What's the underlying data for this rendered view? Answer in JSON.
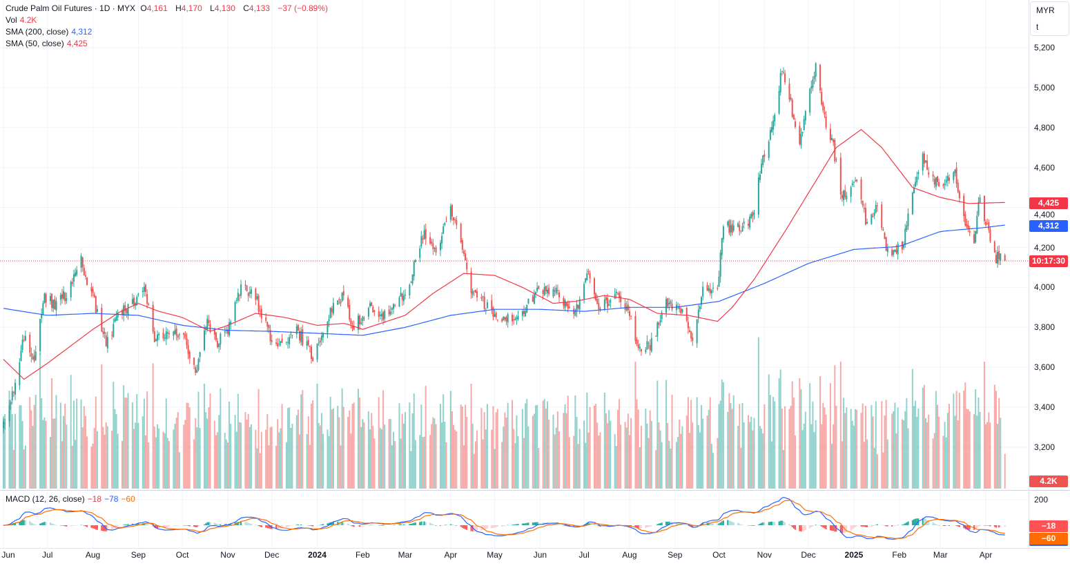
{
  "header": {
    "symbol": "Crude Palm Oil Futures · 1D · MYX",
    "open_label": "O",
    "open": "4,161",
    "high_label": "H",
    "high": "4,170",
    "low_label": "L",
    "low": "4,130",
    "close_label": "C",
    "close": "4,133",
    "change": "−37 (−0.89%)"
  },
  "indicators": {
    "vol_label": "Vol",
    "vol_value": "4.2K",
    "sma200_label": "SMA (200, close)",
    "sma200_value": "4,312",
    "sma50_label": "SMA (50, close)",
    "sma50_value": "4,425",
    "macd_label": "MACD (12, 26, close)",
    "macd_hist": "−18",
    "macd_line": "−78",
    "macd_signal": "−60"
  },
  "currency_box": {
    "currency": "MYR",
    "unit": "t"
  },
  "badges": {
    "sma50": "4,425",
    "sma200": "4,312",
    "countdown": "10:17:30",
    "volume": "4.2K",
    "macd_hist": "−18",
    "macd_signal": "−60"
  },
  "colors": {
    "up": "#26a69a",
    "down": "#ef5350",
    "sma200": "#2962ff",
    "sma50": "#f23645",
    "macd": "#2962ff",
    "signal": "#ff6d00"
  },
  "chart_data": {
    "type": "candlestick",
    "title": "Crude Palm Oil Futures · 1D · MYX",
    "ylabel": "MYR/t",
    "ylim": [
      3100,
      5250
    ],
    "y_ticks": [
      "5,200",
      "5,000",
      "4,800",
      "4,600",
      "4,400",
      "4,200",
      "4,000",
      "3,800",
      "3,600",
      "3,400",
      "3,200"
    ],
    "y_tick_values": [
      5200,
      5000,
      4800,
      4600,
      4400,
      4200,
      4000,
      3800,
      3600,
      3400,
      3200
    ],
    "x_ticks": [
      {
        "label": "Jun",
        "date": "2023-06-01"
      },
      {
        "label": "Jul",
        "date": "2023-07-01"
      },
      {
        "label": "Aug",
        "date": "2023-08-01"
      },
      {
        "label": "Sep",
        "date": "2023-09-01"
      },
      {
        "label": "Oct",
        "date": "2023-10-01"
      },
      {
        "label": "Nov",
        "date": "2023-11-01"
      },
      {
        "label": "Dec",
        "date": "2023-12-01"
      },
      {
        "label": "2024",
        "date": "2024-01-01",
        "bold": true
      },
      {
        "label": "Feb",
        "date": "2024-02-01"
      },
      {
        "label": "Mar",
        "date": "2024-03-01"
      },
      {
        "label": "Apr",
        "date": "2024-04-01"
      },
      {
        "label": "May",
        "date": "2024-05-01"
      },
      {
        "label": "Jun",
        "date": "2024-06-01"
      },
      {
        "label": "Jul",
        "date": "2024-07-01"
      },
      {
        "label": "Aug",
        "date": "2024-08-01"
      },
      {
        "label": "Sep",
        "date": "2024-09-01"
      },
      {
        "label": "Oct",
        "date": "2024-10-01"
      },
      {
        "label": "Nov",
        "date": "2024-11-01"
      },
      {
        "label": "Dec",
        "date": "2024-12-01"
      },
      {
        "label": "2025",
        "date": "2025-01-01",
        "bold": true
      },
      {
        "label": "Feb",
        "date": "2025-02-01"
      },
      {
        "label": "Mar",
        "date": "2025-03-01"
      },
      {
        "label": "Apr",
        "date": "2025-04-01"
      }
    ],
    "last": {
      "date": "2025-04-14",
      "open": 4161,
      "high": 4170,
      "low": 4130,
      "close": 4133,
      "volume_k": 4.2
    },
    "close_keypoints": [
      [
        "2023-06-01",
        3300
      ],
      [
        "2023-06-08",
        3500
      ],
      [
        "2023-06-15",
        3750
      ],
      [
        "2023-06-22",
        3650
      ],
      [
        "2023-06-29",
        3940
      ],
      [
        "2023-07-06",
        3920
      ],
      [
        "2023-07-13",
        3960
      ],
      [
        "2023-07-24",
        4130
      ],
      [
        "2023-08-01",
        3950
      ],
      [
        "2023-08-10",
        3720
      ],
      [
        "2023-08-18",
        3850
      ],
      [
        "2023-08-28",
        3930
      ],
      [
        "2023-09-05",
        4000
      ],
      [
        "2023-09-12",
        3750
      ],
      [
        "2023-09-22",
        3780
      ],
      [
        "2023-10-02",
        3750
      ],
      [
        "2023-10-10",
        3560
      ],
      [
        "2023-10-18",
        3820
      ],
      [
        "2023-10-25",
        3730
      ],
      [
        "2023-11-02",
        3800
      ],
      [
        "2023-11-10",
        4000
      ],
      [
        "2023-11-20",
        3950
      ],
      [
        "2023-11-30",
        3750
      ],
      [
        "2023-12-08",
        3720
      ],
      [
        "2023-12-18",
        3790
      ],
      [
        "2023-12-29",
        3650
      ],
      [
        "2024-01-08",
        3850
      ],
      [
        "2024-01-18",
        3960
      ],
      [
        "2024-01-26",
        3800
      ],
      [
        "2024-02-05",
        3900
      ],
      [
        "2024-02-15",
        3860
      ],
      [
        "2024-02-26",
        3930
      ],
      [
        "2024-03-05",
        4050
      ],
      [
        "2024-03-14",
        4280
      ],
      [
        "2024-03-22",
        4180
      ],
      [
        "2024-04-01",
        4400
      ],
      [
        "2024-04-08",
        4200
      ],
      [
        "2024-04-15",
        4000
      ],
      [
        "2024-04-26",
        3900
      ],
      [
        "2024-05-06",
        3850
      ],
      [
        "2024-05-17",
        3850
      ],
      [
        "2024-05-28",
        3960
      ],
      [
        "2024-06-05",
        4000
      ],
      [
        "2024-06-14",
        3960
      ],
      [
        "2024-06-25",
        3870
      ],
      [
        "2024-07-03",
        4080
      ],
      [
        "2024-07-12",
        3880
      ],
      [
        "2024-07-22",
        3980
      ],
      [
        "2024-08-01",
        3860
      ],
      [
        "2024-08-08",
        3680
      ],
      [
        "2024-08-16",
        3720
      ],
      [
        "2024-08-26",
        3930
      ],
      [
        "2024-09-05",
        3880
      ],
      [
        "2024-09-13",
        3750
      ],
      [
        "2024-09-20",
        4000
      ],
      [
        "2024-09-30",
        4000
      ],
      [
        "2024-10-04",
        4300
      ],
      [
        "2024-10-15",
        4300
      ],
      [
        "2024-10-24",
        4350
      ],
      [
        "2024-10-31",
        4650
      ],
      [
        "2024-11-08",
        4850
      ],
      [
        "2024-11-13",
        5100
      ],
      [
        "2024-11-18",
        4950
      ],
      [
        "2024-11-25",
        4700
      ],
      [
        "2024-12-02",
        5000
      ],
      [
        "2024-12-06",
        5100
      ],
      [
        "2024-12-12",
        4850
      ],
      [
        "2024-12-18",
        4700
      ],
      [
        "2024-12-24",
        4450
      ],
      [
        "2025-01-02",
        4550
      ],
      [
        "2025-01-10",
        4300
      ],
      [
        "2025-01-17",
        4400
      ],
      [
        "2025-01-24",
        4180
      ],
      [
        "2025-02-03",
        4200
      ],
      [
        "2025-02-10",
        4450
      ],
      [
        "2025-02-17",
        4650
      ],
      [
        "2025-02-24",
        4550
      ],
      [
        "2025-03-03",
        4500
      ],
      [
        "2025-03-10",
        4600
      ],
      [
        "2025-03-17",
        4350
      ],
      [
        "2025-03-24",
        4250
      ],
      [
        "2025-03-28",
        4450
      ],
      [
        "2025-04-02",
        4300
      ],
      [
        "2025-04-08",
        4150
      ],
      [
        "2025-04-14",
        4133
      ]
    ],
    "sma200_keypoints": [
      [
        "2023-06-01",
        3895
      ],
      [
        "2023-07-01",
        3860
      ],
      [
        "2023-08-01",
        3870
      ],
      [
        "2023-09-01",
        3860
      ],
      [
        "2023-10-01",
        3810
      ],
      [
        "2023-11-01",
        3785
      ],
      [
        "2023-12-01",
        3780
      ],
      [
        "2024-01-01",
        3770
      ],
      [
        "2024-02-01",
        3760
      ],
      [
        "2024-03-01",
        3800
      ],
      [
        "2024-04-01",
        3860
      ],
      [
        "2024-05-01",
        3890
      ],
      [
        "2024-06-01",
        3890
      ],
      [
        "2024-07-01",
        3880
      ],
      [
        "2024-08-01",
        3900
      ],
      [
        "2024-09-01",
        3900
      ],
      [
        "2024-10-01",
        3930
      ],
      [
        "2024-11-01",
        4020
      ],
      [
        "2024-12-01",
        4120
      ],
      [
        "2025-01-01",
        4190
      ],
      [
        "2025-02-01",
        4205
      ],
      [
        "2025-03-01",
        4280
      ],
      [
        "2025-04-01",
        4300
      ],
      [
        "2025-04-14",
        4312
      ]
    ],
    "sma50_keypoints": [
      [
        "2023-06-01",
        3640
      ],
      [
        "2023-06-15",
        3540
      ],
      [
        "2023-07-01",
        3620
      ],
      [
        "2023-08-01",
        3790
      ],
      [
        "2023-08-20",
        3880
      ],
      [
        "2023-09-01",
        3920
      ],
      [
        "2023-09-15",
        3880
      ],
      [
        "2023-10-01",
        3850
      ],
      [
        "2023-10-20",
        3780
      ],
      [
        "2023-11-01",
        3810
      ],
      [
        "2023-11-20",
        3870
      ],
      [
        "2023-12-10",
        3850
      ],
      [
        "2024-01-01",
        3810
      ],
      [
        "2024-01-20",
        3820
      ],
      [
        "2024-02-01",
        3790
      ],
      [
        "2024-03-01",
        3860
      ],
      [
        "2024-03-20",
        3970
      ],
      [
        "2024-04-10",
        4070
      ],
      [
        "2024-05-01",
        4060
      ],
      [
        "2024-05-20",
        4000
      ],
      [
        "2024-06-10",
        3920
      ],
      [
        "2024-06-25",
        3930
      ],
      [
        "2024-07-15",
        3960
      ],
      [
        "2024-08-01",
        3940
      ],
      [
        "2024-08-20",
        3870
      ],
      [
        "2024-09-10",
        3860
      ],
      [
        "2024-09-30",
        3830
      ],
      [
        "2024-10-10",
        3900
      ],
      [
        "2024-10-25",
        4040
      ],
      [
        "2024-11-15",
        4280
      ],
      [
        "2024-12-05",
        4520
      ],
      [
        "2024-12-20",
        4700
      ],
      [
        "2025-01-06",
        4790
      ],
      [
        "2025-01-20",
        4700
      ],
      [
        "2025-02-10",
        4500
      ],
      [
        "2025-03-01",
        4450
      ],
      [
        "2025-03-20",
        4420
      ],
      [
        "2025-04-14",
        4425
      ]
    ],
    "macd_ylim": [
      -150,
      250
    ],
    "macd_ticks": [
      "200"
    ],
    "macd_tick_values": [
      200
    ]
  }
}
